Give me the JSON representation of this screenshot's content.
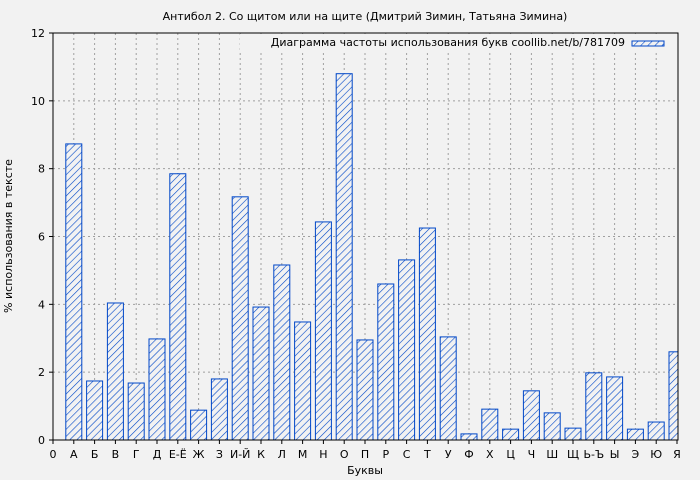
{
  "chart_data": {
    "type": "bar",
    "title": "Антибол 2. Со щитом или на щите (Дмитрий Зимин, Татьяна Зимина)",
    "xlabel": "Буквы",
    "ylabel": "% использования в тексте",
    "x_tick_labels": [
      "0",
      "А",
      "Б",
      "В",
      "Г",
      "Д",
      "Е-Ё",
      "Ж",
      "З",
      "И-Й",
      "К",
      "Л",
      "М",
      "Н",
      "О",
      "П",
      "Р",
      "С",
      "Т",
      "У",
      "Ф",
      "Х",
      "Ц",
      "Ч",
      "Ш",
      "Щ",
      "Ь-Ъ",
      "Ы",
      "Э",
      "Ю",
      "Я"
    ],
    "categories": [
      "А",
      "Б",
      "В",
      "Г",
      "Д",
      "Е-Ё",
      "Ж",
      "З",
      "И-Й",
      "К",
      "Л",
      "М",
      "Н",
      "О",
      "П",
      "Р",
      "С",
      "Т",
      "У",
      "Ф",
      "Х",
      "Ц",
      "Ч",
      "Ш",
      "Щ",
      "Ь-Ъ",
      "Ы",
      "Э",
      "Ю",
      "Я"
    ],
    "series": [
      {
        "name": "Диаграмма частоты использования букв coollib.net/b/781709",
        "values": [
          8.73,
          1.74,
          4.04,
          1.68,
          2.98,
          7.85,
          0.88,
          1.8,
          7.17,
          3.92,
          5.16,
          3.48,
          6.43,
          10.8,
          2.95,
          4.6,
          5.31,
          6.25,
          3.04,
          0.18,
          0.91,
          0.32,
          1.45,
          0.8,
          0.35,
          1.98,
          1.86,
          0.32,
          0.53,
          2.6
        ]
      }
    ],
    "ylim": [
      0,
      12
    ],
    "yticks": [
      0,
      2,
      4,
      6,
      8,
      10,
      12
    ],
    "xlim": [
      0,
      30
    ],
    "grid": true,
    "legend_position": "top-right",
    "colors": {
      "bar": "#0047c8",
      "background": "#f2f2f2",
      "grid": "#a0a0a0"
    }
  }
}
